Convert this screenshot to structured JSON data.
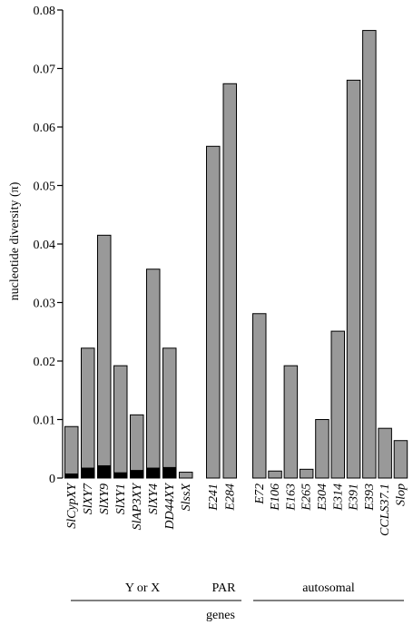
{
  "chart_data": {
    "type": "bar",
    "ylabel": "nucleotide diversity (π)",
    "xlabel": "genes",
    "ylim": [
      0,
      0.08
    ],
    "yticks": [
      {
        "value": 0,
        "label": "0"
      },
      {
        "value": 0.01,
        "label": "0.01"
      },
      {
        "value": 0.02,
        "label": "0.02"
      },
      {
        "value": 0.03,
        "label": "0.03"
      },
      {
        "value": 0.04,
        "label": "0.04"
      },
      {
        "value": 0.05,
        "label": "0.05"
      },
      {
        "value": 0.06,
        "label": "0.06"
      },
      {
        "value": 0.07,
        "label": "0.07"
      },
      {
        "value": 0.08,
        "label": "0.08"
      }
    ],
    "colors": {
      "total": "#999999",
      "inner": "#000000",
      "edge": "#000000"
    },
    "groups": [
      {
        "name": "Y or X",
        "bars": [
          {
            "label": "SlCypXY",
            "value": 0.0088,
            "inner": 0.0007
          },
          {
            "label": "SlXY7",
            "value": 0.0222,
            "inner": 0.0017
          },
          {
            "label": "SlXY9",
            "value": 0.0415,
            "inner": 0.0021
          },
          {
            "label": "SlXY1",
            "value": 0.0192,
            "inner": 0.0009
          },
          {
            "label": "SlAP3XY",
            "value": 0.0108,
            "inner": 0.0013
          },
          {
            "label": "SlXY4",
            "value": 0.0357,
            "inner": 0.0017
          },
          {
            "label": "DD44XY",
            "value": 0.0222,
            "inner": 0.0018
          },
          {
            "label": "SlssX",
            "value": 0.001,
            "inner": null
          }
        ]
      },
      {
        "name": "PAR",
        "bars": [
          {
            "label": "E241",
            "value": 0.0567,
            "inner": null
          },
          {
            "label": "E284",
            "value": 0.0674,
            "inner": null
          }
        ]
      },
      {
        "name": "autosomal",
        "bars": [
          {
            "label": "E72",
            "value": 0.0281,
            "inner": null
          },
          {
            "label": "E106",
            "value": 0.0012,
            "inner": null
          },
          {
            "label": "E163",
            "value": 0.0192,
            "inner": null
          },
          {
            "label": "E265",
            "value": 0.0015,
            "inner": null
          },
          {
            "label": "E304",
            "value": 0.01,
            "inner": null
          },
          {
            "label": "E314",
            "value": 0.0251,
            "inner": null
          },
          {
            "label": "E391",
            "value": 0.068,
            "inner": null
          },
          {
            "label": "E393",
            "value": 0.0765,
            "inner": null
          },
          {
            "label": "CCLS37.1",
            "value": 0.0085,
            "inner": null
          },
          {
            "label": "Slop",
            "value": 0.0064,
            "inner": null
          }
        ]
      }
    ]
  }
}
